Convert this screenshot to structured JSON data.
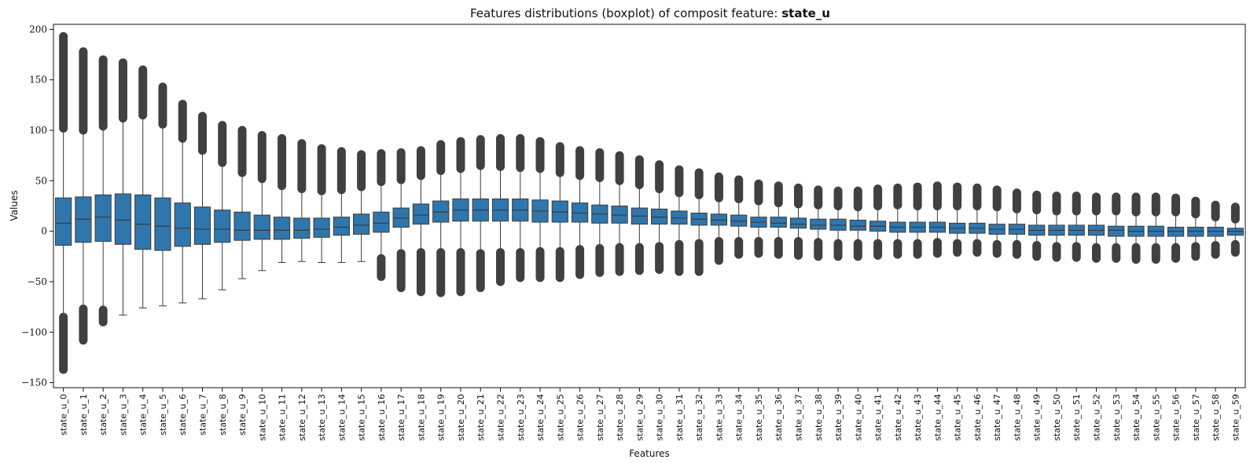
{
  "chart_data": {
    "type": "boxplot",
    "title": "Features distributions (boxplot) of composit feature: ",
    "title_emphasis": "state_u",
    "xlabel": "Features",
    "ylabel": "Values",
    "ylim": [
      -155,
      205
    ],
    "yticks": [
      -150,
      -100,
      -50,
      0,
      50,
      100,
      150,
      200
    ],
    "grid": false,
    "box_color": "#2f76ad",
    "line_color": "#3a3a3a",
    "categories": [
      "state_u_0",
      "state_u_1",
      "state_u_2",
      "state_u_3",
      "state_u_4",
      "state_u_5",
      "state_u_6",
      "state_u_7",
      "state_u_8",
      "state_u_9",
      "state_u_10",
      "state_u_11",
      "state_u_12",
      "state_u_13",
      "state_u_14",
      "state_u_15",
      "state_u_16",
      "state_u_17",
      "state_u_18",
      "state_u_19",
      "state_u_20",
      "state_u_21",
      "state_u_22",
      "state_u_23",
      "state_u_24",
      "state_u_25",
      "state_u_26",
      "state_u_27",
      "state_u_28",
      "state_u_29",
      "state_u_30",
      "state_u_31",
      "state_u_32",
      "state_u_33",
      "state_u_34",
      "state_u_35",
      "state_u_36",
      "state_u_37",
      "state_u_38",
      "state_u_39",
      "state_u_40",
      "state_u_41",
      "state_u_42",
      "state_u_43",
      "state_u_44",
      "state_u_45",
      "state_u_46",
      "state_u_47",
      "state_u_48",
      "state_u_49",
      "state_u_50",
      "state_u_51",
      "state_u_52",
      "state_u_53",
      "state_u_54",
      "state_u_55",
      "state_u_56",
      "state_u_57",
      "state_u_58",
      "state_u_59"
    ],
    "boxes": [
      {
        "q1": -14,
        "median": 8,
        "q3": 33,
        "whislo": -85,
        "whishi": 102,
        "fliers_low": [
          -85,
          -137
        ],
        "fliers_high": [
          102,
          193
        ]
      },
      {
        "q1": -11,
        "median": 12,
        "q3": 34,
        "whislo": -77,
        "whishi": 100,
        "fliers_low": [
          -77,
          -108
        ],
        "fliers_high": [
          100,
          166,
          178
        ]
      },
      {
        "q1": -10,
        "median": 14,
        "q3": 36,
        "whislo": -78,
        "whishi": 104,
        "fliers_low": [
          -78,
          -90
        ],
        "fliers_high": [
          104,
          170
        ]
      },
      {
        "q1": -13,
        "median": 11,
        "q3": 37,
        "whislo": -83,
        "whishi": 112,
        "fliers_low": [],
        "fliers_high": [
          112,
          167
        ]
      },
      {
        "q1": -18,
        "median": 7,
        "q3": 36,
        "whislo": -76,
        "whishi": 115,
        "fliers_low": [],
        "fliers_high": [
          115,
          160
        ]
      },
      {
        "q1": -19,
        "median": 5,
        "q3": 33,
        "whislo": -74,
        "whishi": 106,
        "fliers_low": [],
        "fliers_high": [
          106,
          143
        ]
      },
      {
        "q1": -15,
        "median": 3,
        "q3": 28,
        "whislo": -71,
        "whishi": 92,
        "fliers_low": [],
        "fliers_high": [
          92,
          126
        ]
      },
      {
        "q1": -13,
        "median": 2,
        "q3": 24,
        "whislo": -67,
        "whishi": 80,
        "fliers_low": [],
        "fliers_high": [
          80,
          114
        ]
      },
      {
        "q1": -11,
        "median": 2,
        "q3": 21,
        "whislo": -58,
        "whishi": 68,
        "fliers_low": [],
        "fliers_high": [
          68,
          105
        ]
      },
      {
        "q1": -9,
        "median": 1,
        "q3": 19,
        "whislo": -47,
        "whishi": 58,
        "fliers_low": [],
        "fliers_high": [
          58,
          100
        ]
      },
      {
        "q1": -8,
        "median": 1,
        "q3": 16,
        "whislo": -39,
        "whishi": 52,
        "fliers_low": [],
        "fliers_high": [
          52,
          95
        ]
      },
      {
        "q1": -8,
        "median": 1,
        "q3": 14,
        "whislo": -31,
        "whishi": 45,
        "fliers_low": [],
        "fliers_high": [
          45,
          92
        ]
      },
      {
        "q1": -7,
        "median": 1,
        "q3": 13,
        "whislo": -30,
        "whishi": 42,
        "fliers_low": [],
        "fliers_high": [
          42,
          87
        ]
      },
      {
        "q1": -6,
        "median": 2,
        "q3": 13,
        "whislo": -31,
        "whishi": 40,
        "fliers_low": [],
        "fliers_high": [
          40,
          82
        ]
      },
      {
        "q1": -4,
        "median": 4,
        "q3": 14,
        "whislo": -31,
        "whishi": 41,
        "fliers_low": [],
        "fliers_high": [
          41,
          79
        ]
      },
      {
        "q1": -3,
        "median": 6,
        "q3": 17,
        "whislo": -30,
        "whishi": 44,
        "fliers_low": [],
        "fliers_high": [
          44,
          76
        ]
      },
      {
        "q1": -1,
        "median": 8,
        "q3": 19,
        "whislo": -27,
        "whishi": 49,
        "fliers_low": [
          -27,
          -45
        ],
        "fliers_high": [
          49,
          77
        ]
      },
      {
        "q1": 4,
        "median": 13,
        "q3": 23,
        "whislo": -22,
        "whishi": 51,
        "fliers_low": [
          -22,
          -56
        ],
        "fliers_high": [
          51,
          78
        ]
      },
      {
        "q1": 7,
        "median": 16,
        "q3": 27,
        "whislo": -21,
        "whishi": 55,
        "fliers_low": [
          -21,
          -60
        ],
        "fliers_high": [
          55,
          80
        ]
      },
      {
        "q1": 9,
        "median": 19,
        "q3": 30,
        "whislo": -21,
        "whishi": 60,
        "fliers_low": [
          -21,
          -61
        ],
        "fliers_high": [
          60,
          86
        ]
      },
      {
        "q1": 10,
        "median": 21,
        "q3": 32,
        "whislo": -21,
        "whishi": 62,
        "fliers_low": [
          -21,
          -60
        ],
        "fliers_high": [
          62,
          89
        ]
      },
      {
        "q1": 10,
        "median": 21,
        "q3": 32,
        "whislo": -22,
        "whishi": 65,
        "fliers_low": [
          -22,
          -56
        ],
        "fliers_high": [
          65,
          91
        ]
      },
      {
        "q1": 10,
        "median": 21,
        "q3": 32,
        "whislo": -21,
        "whishi": 64,
        "fliers_low": [
          -21,
          -50
        ],
        "fliers_high": [
          64,
          92
        ]
      },
      {
        "q1": 10,
        "median": 21,
        "q3": 32,
        "whislo": -21,
        "whishi": 63,
        "fliers_low": [
          -21,
          -46
        ],
        "fliers_high": [
          63,
          92
        ]
      },
      {
        "q1": 9,
        "median": 20,
        "q3": 31,
        "whislo": -20,
        "whishi": 62,
        "fliers_low": [
          -20,
          -46
        ],
        "fliers_high": [
          62,
          89
        ]
      },
      {
        "q1": 9,
        "median": 19,
        "q3": 30,
        "whislo": -20,
        "whishi": 58,
        "fliers_low": [
          -20,
          -46
        ],
        "fliers_high": [
          58,
          84
        ]
      },
      {
        "q1": 9,
        "median": 18,
        "q3": 28,
        "whislo": -18,
        "whishi": 55,
        "fliers_low": [
          -18,
          -43
        ],
        "fliers_high": [
          55,
          80
        ]
      },
      {
        "q1": 8,
        "median": 17,
        "q3": 26,
        "whislo": -17,
        "whishi": 53,
        "fliers_low": [
          -17,
          -41
        ],
        "fliers_high": [
          53,
          78
        ]
      },
      {
        "q1": 8,
        "median": 16,
        "q3": 25,
        "whislo": -16,
        "whishi": 50,
        "fliers_low": [
          -16,
          -40
        ],
        "fliers_high": [
          50,
          75
        ]
      },
      {
        "q1": 7,
        "median": 15,
        "q3": 23,
        "whislo": -16,
        "whishi": 46,
        "fliers_low": [
          -16,
          -39
        ],
        "fliers_high": [
          46,
          71
        ]
      },
      {
        "q1": 7,
        "median": 14,
        "q3": 22,
        "whislo": -15,
        "whishi": 42,
        "fliers_low": [
          -15,
          -38
        ],
        "fliers_high": [
          42,
          66
        ]
      },
      {
        "q1": 7,
        "median": 13,
        "q3": 20,
        "whislo": -13,
        "whishi": 38,
        "fliers_low": [
          -13,
          -40
        ],
        "fliers_high": [
          38,
          61
        ]
      },
      {
        "q1": 6,
        "median": 12,
        "q3": 18,
        "whislo": -12,
        "whishi": 36,
        "fliers_low": [
          -12,
          -40
        ],
        "fliers_high": [
          36,
          58
        ]
      },
      {
        "q1": 6,
        "median": 11,
        "q3": 17,
        "whislo": -10,
        "whishi": 33,
        "fliers_low": [
          -10,
          -29
        ],
        "fliers_high": [
          33,
          54
        ]
      },
      {
        "q1": 5,
        "median": 10,
        "q3": 16,
        "whislo": -10,
        "whishi": 32,
        "fliers_low": [
          -10,
          -23
        ],
        "fliers_high": [
          32,
          51
        ]
      },
      {
        "q1": 4,
        "median": 9,
        "q3": 14,
        "whislo": -10,
        "whishi": 30,
        "fliers_low": [
          -10,
          -22
        ],
        "fliers_high": [
          30,
          47
        ]
      },
      {
        "q1": 4,
        "median": 8,
        "q3": 14,
        "whislo": -10,
        "whishi": 28,
        "fliers_low": [
          -10,
          -23
        ],
        "fliers_high": [
          28,
          45
        ]
      },
      {
        "q1": 3,
        "median": 7,
        "q3": 13,
        "whislo": -10,
        "whishi": 27,
        "fliers_low": [
          -10,
          -24
        ],
        "fliers_high": [
          27,
          43
        ]
      },
      {
        "q1": 2,
        "median": 6,
        "q3": 12,
        "whislo": -11,
        "whishi": 26,
        "fliers_low": [
          -11,
          -25
        ],
        "fliers_high": [
          26,
          41
        ]
      },
      {
        "q1": 1,
        "median": 6,
        "q3": 12,
        "whislo": -12,
        "whishi": 25,
        "fliers_low": [
          -12,
          -25
        ],
        "fliers_high": [
          25,
          40
        ]
      },
      {
        "q1": 1,
        "median": 5,
        "q3": 11,
        "whislo": -12,
        "whishi": 24,
        "fliers_low": [
          -12,
          -25
        ],
        "fliers_high": [
          24,
          40
        ]
      },
      {
        "q1": 0,
        "median": 5,
        "q3": 10,
        "whislo": -12,
        "whishi": 25,
        "fliers_low": [
          -12,
          -24
        ],
        "fliers_high": [
          25,
          42
        ]
      },
      {
        "q1": -1,
        "median": 4,
        "q3": 9,
        "whislo": -12,
        "whishi": 26,
        "fliers_low": [
          -12,
          -23
        ],
        "fliers_high": [
          26,
          43
        ]
      },
      {
        "q1": -1,
        "median": 4,
        "q3": 9,
        "whislo": -12,
        "whishi": 25,
        "fliers_low": [
          -12,
          -23
        ],
        "fliers_high": [
          25,
          44
        ]
      },
      {
        "q1": -1,
        "median": 4,
        "q3": 9,
        "whislo": -11,
        "whishi": 25,
        "fliers_low": [
          -11,
          -22
        ],
        "fliers_high": [
          25,
          45
        ]
      },
      {
        "q1": -2,
        "median": 3,
        "q3": 8,
        "whislo": -12,
        "whishi": 25,
        "fliers_low": [
          -12,
          -21
        ],
        "fliers_high": [
          25,
          44
        ]
      },
      {
        "q1": -2,
        "median": 3,
        "q3": 8,
        "whislo": -12,
        "whishi": 25,
        "fliers_low": [
          -12,
          -21
        ],
        "fliers_high": [
          25,
          43
        ]
      },
      {
        "q1": -3,
        "median": 2,
        "q3": 7,
        "whislo": -13,
        "whishi": 24,
        "fliers_low": [
          -13,
          -22
        ],
        "fliers_high": [
          24,
          41
        ]
      },
      {
        "q1": -3,
        "median": 2,
        "q3": 7,
        "whislo": -13,
        "whishi": 22,
        "fliers_low": [
          -13,
          -23
        ],
        "fliers_high": [
          22,
          38
        ]
      },
      {
        "q1": -4,
        "median": 1,
        "q3": 6,
        "whislo": -14,
        "whishi": 21,
        "fliers_low": [
          -14,
          -25
        ],
        "fliers_high": [
          21,
          36
        ]
      },
      {
        "q1": -4,
        "median": 1,
        "q3": 6,
        "whislo": -15,
        "whishi": 20,
        "fliers_low": [
          -15,
          -26
        ],
        "fliers_high": [
          20,
          35
        ]
      },
      {
        "q1": -4,
        "median": 1,
        "q3": 6,
        "whislo": -15,
        "whishi": 20,
        "fliers_low": [
          -15,
          -26
        ],
        "fliers_high": [
          20,
          35
        ]
      },
      {
        "q1": -4,
        "median": 1,
        "q3": 6,
        "whislo": -16,
        "whishi": 20,
        "fliers_low": [
          -16,
          -27
        ],
        "fliers_high": [
          20,
          34
        ]
      },
      {
        "q1": -5,
        "median": 1,
        "q3": 5,
        "whislo": -16,
        "whishi": 20,
        "fliers_low": [
          -16,
          -27
        ],
        "fliers_high": [
          20,
          34
        ]
      },
      {
        "q1": -5,
        "median": 0,
        "q3": 5,
        "whislo": -16,
        "whishi": 19,
        "fliers_low": [
          -16,
          -28
        ],
        "fliers_high": [
          19,
          34
        ]
      },
      {
        "q1": -5,
        "median": 0,
        "q3": 5,
        "whislo": -16,
        "whishi": 19,
        "fliers_low": [
          -16,
          -28
        ],
        "fliers_high": [
          19,
          34
        ]
      },
      {
        "q1": -5,
        "median": 0,
        "q3": 4,
        "whislo": -16,
        "whishi": 19,
        "fliers_low": [
          -16,
          -27
        ],
        "fliers_high": [
          19,
          33
        ]
      },
      {
        "q1": -5,
        "median": 0,
        "q3": 4,
        "whislo": -15,
        "whishi": 17,
        "fliers_low": [
          -15,
          -25
        ],
        "fliers_high": [
          17,
          30
        ]
      },
      {
        "q1": -5,
        "median": 0,
        "q3": 4,
        "whislo": -14,
        "whishi": 14,
        "fliers_low": [
          -14,
          -23
        ],
        "fliers_high": [
          14,
          26
        ]
      },
      {
        "q1": -4,
        "median": 0,
        "q3": 3,
        "whislo": -13,
        "whishi": 12,
        "fliers_low": [
          -13,
          -21
        ],
        "fliers_high": [
          12,
          24
        ]
      }
    ]
  }
}
